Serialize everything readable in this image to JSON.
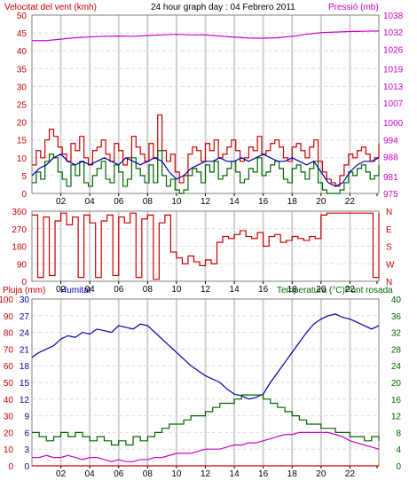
{
  "header": {
    "left_label": "Velocitat del vent (kmh)",
    "center_label": "24 hour graph day : 04 Febrero 2011",
    "right_label": "Pressió (mb)"
  },
  "colors": {
    "wind": "#cc0000",
    "gust": "#cc0000",
    "avg_wind": "#0000aa",
    "pressure": "#cc00cc",
    "dir": "#cc0000",
    "rain": "#cc0000",
    "humidity": "#0000aa",
    "temperature": "#006600",
    "dewpoint": "#cc00cc",
    "grid": "#cfcfcf",
    "frame": "#808080"
  },
  "x_ticks": [
    "02",
    "04",
    "06",
    "08",
    "10",
    "12",
    "14",
    "16",
    "18",
    "20",
    "22"
  ],
  "chart_data": [
    {
      "type": "line",
      "name": "wind-pressure",
      "xlim": [
        0,
        24
      ],
      "left_axis": {
        "label": "Velocitat del vent (kmh)",
        "ylim": [
          0,
          50
        ],
        "ticks": [
          0,
          5,
          10,
          15,
          20,
          25,
          30,
          35,
          40,
          45,
          50
        ]
      },
      "right_axis": {
        "label": "Pressió (mb)",
        "ylim": [
          975,
          1038
        ],
        "ticks": [
          975,
          981,
          988,
          994,
          1000,
          1007,
          1013,
          1019,
          1026,
          1032,
          1038
        ]
      },
      "series": [
        {
          "key": "gust",
          "axis": "left",
          "x": [
            0,
            0.3,
            0.6,
            0.9,
            1.2,
            1.5,
            1.8,
            2.1,
            2.4,
            2.7,
            3,
            3.3,
            3.6,
            3.9,
            4.2,
            4.5,
            4.8,
            5.1,
            5.4,
            5.7,
            6,
            6.3,
            6.6,
            6.9,
            7.2,
            7.5,
            7.8,
            8.1,
            8.4,
            8.7,
            9,
            9.3,
            9.6,
            9.9,
            10.2,
            10.5,
            10.8,
            11.1,
            11.4,
            11.7,
            12,
            12.3,
            12.6,
            12.9,
            13.2,
            13.5,
            13.8,
            14.1,
            14.4,
            14.7,
            15,
            15.3,
            15.6,
            15.9,
            16.2,
            16.5,
            16.8,
            17.1,
            17.4,
            17.7,
            18,
            18.3,
            18.6,
            18.9,
            19.2,
            19.5,
            19.8,
            20.1,
            20.4,
            20.7,
            21,
            21.3,
            21.6,
            21.9,
            22.2,
            22.5,
            22.8,
            23.1,
            23.4,
            23.7,
            24
          ],
          "y": [
            8,
            12,
            10,
            15,
            18,
            16,
            13,
            11,
            9,
            14,
            12,
            16,
            10,
            8,
            12,
            13,
            15,
            11,
            9,
            14,
            12,
            8,
            10,
            16,
            13,
            11,
            9,
            14,
            10,
            22,
            12,
            9,
            11,
            6,
            3,
            5,
            11,
            13,
            12,
            9,
            14,
            12,
            15,
            10,
            11,
            13,
            15,
            12,
            9,
            10,
            13,
            12,
            16,
            11,
            12,
            14,
            15,
            13,
            10,
            9,
            13,
            14,
            12,
            10,
            13,
            15,
            9,
            6,
            4,
            3,
            2,
            5,
            8,
            11,
            10,
            12,
            13,
            11,
            9,
            10,
            14
          ]
        },
        {
          "key": "wind",
          "axis": "left",
          "x": [
            0,
            0.3,
            0.6,
            0.9,
            1.2,
            1.5,
            1.8,
            2.1,
            2.4,
            2.7,
            3,
            3.3,
            3.6,
            3.9,
            4.2,
            4.5,
            4.8,
            5.1,
            5.4,
            5.7,
            6,
            6.3,
            6.6,
            6.9,
            7.2,
            7.5,
            7.8,
            8.1,
            8.4,
            8.7,
            9,
            9.3,
            9.6,
            9.9,
            10.2,
            10.5,
            10.8,
            11.1,
            11.4,
            11.7,
            12,
            12.3,
            12.6,
            12.9,
            13.2,
            13.5,
            13.8,
            14.1,
            14.4,
            14.7,
            15,
            15.3,
            15.6,
            15.9,
            16.2,
            16.5,
            16.8,
            17.1,
            17.4,
            17.7,
            18,
            18.3,
            18.6,
            18.9,
            19.2,
            19.5,
            19.8,
            20.1,
            20.4,
            20.7,
            21,
            21.3,
            21.6,
            21.9,
            22.2,
            22.5,
            22.8,
            23.1,
            23.4,
            23.7,
            24
          ],
          "y": [
            3,
            6,
            4,
            9,
            11,
            10,
            6,
            4,
            2,
            8,
            5,
            9,
            3,
            2,
            5,
            7,
            9,
            4,
            3,
            8,
            6,
            2,
            4,
            10,
            7,
            5,
            3,
            8,
            3,
            12,
            5,
            2,
            4,
            1,
            0,
            1,
            5,
            7,
            6,
            3,
            8,
            6,
            9,
            4,
            5,
            7,
            9,
            6,
            3,
            4,
            7,
            6,
            10,
            5,
            6,
            8,
            9,
            7,
            4,
            3,
            7,
            8,
            6,
            4,
            7,
            9,
            3,
            1,
            0,
            0,
            0,
            1,
            3,
            6,
            5,
            7,
            8,
            6,
            4,
            5,
            8
          ]
        },
        {
          "key": "avg_wind",
          "axis": "left",
          "x": [
            0,
            0.5,
            1,
            1.5,
            2,
            2.5,
            3,
            3.5,
            4,
            4.5,
            5,
            5.5,
            6,
            6.5,
            7,
            7.5,
            8,
            8.5,
            9,
            9.5,
            10,
            10.5,
            11,
            11.5,
            12,
            12.5,
            13,
            13.5,
            14,
            14.5,
            15,
            15.5,
            16,
            16.5,
            17,
            17.5,
            18,
            18.5,
            19,
            19.5,
            20,
            20.5,
            21,
            21.5,
            22,
            22.5,
            23,
            23.5,
            24
          ],
          "y": [
            5,
            7,
            8,
            10,
            11,
            9,
            8,
            9,
            8,
            9,
            10,
            9,
            8,
            10,
            9,
            8,
            9,
            10,
            9,
            6,
            4,
            5,
            7,
            8,
            9,
            9,
            10,
            9,
            9,
            10,
            9,
            10,
            11,
            10,
            9,
            9,
            10,
            9,
            8,
            9,
            6,
            3,
            2,
            3,
            6,
            8,
            9,
            9,
            10
          ]
        },
        {
          "key": "pressure",
          "axis": "right",
          "x": [
            0,
            1,
            2,
            3,
            4,
            5,
            6,
            7,
            8,
            9,
            10,
            11,
            12,
            13,
            14,
            15,
            16,
            17,
            18,
            19,
            20,
            21,
            22,
            23,
            24
          ],
          "y": [
            1029,
            1029,
            1029.5,
            1030,
            1030.3,
            1030.5,
            1030.6,
            1030.5,
            1030.8,
            1031,
            1031.2,
            1031,
            1031,
            1030.6,
            1030.2,
            1029.9,
            1029.8,
            1030,
            1030.5,
            1031.2,
            1031.8,
            1032,
            1032.2,
            1032.3,
            1032.4
          ]
        }
      ]
    },
    {
      "type": "scatter",
      "name": "wind-direction",
      "xlim": [
        0,
        24
      ],
      "ylim": [
        0,
        360
      ],
      "left_ticks": [
        0,
        90,
        180,
        270,
        360
      ],
      "right_ticks": [
        "N",
        "W",
        "S",
        "E",
        "N"
      ],
      "series": [
        {
          "key": "dir",
          "x": [
            0,
            0.4,
            0.8,
            1.2,
            1.6,
            2,
            2.4,
            2.8,
            3.2,
            3.6,
            4,
            4.4,
            4.8,
            5.2,
            5.6,
            6,
            6.4,
            6.8,
            7.2,
            7.6,
            8,
            8.4,
            8.8,
            9.2,
            9.6,
            10,
            10.4,
            10.8,
            11.2,
            11.6,
            12,
            12.4,
            12.8,
            13.2,
            13.6,
            14,
            14.4,
            14.8,
            15.2,
            15.6,
            16,
            16.4,
            16.8,
            17.2,
            17.6,
            18,
            18.4,
            18.8,
            19.2,
            19.6,
            20,
            20.4,
            20.8,
            21.2,
            21.6,
            22,
            22.4,
            22.8,
            23.2,
            23.6,
            24
          ],
          "y": [
            340,
            20,
            330,
            30,
            310,
            350,
            290,
            330,
            20,
            340,
            300,
            20,
            310,
            340,
            30,
            330,
            300,
            350,
            20,
            320,
            340,
            10,
            300,
            340,
            150,
            120,
            90,
            130,
            100,
            80,
            110,
            90,
            200,
            230,
            220,
            240,
            260,
            230,
            220,
            250,
            180,
            230,
            240,
            200,
            210,
            230,
            220,
            210,
            230,
            220,
            340,
            350,
            350,
            350,
            350,
            350,
            350,
            350,
            350,
            20,
            350
          ]
        }
      ]
    },
    {
      "type": "line",
      "name": "humidity-temperature",
      "xlim": [
        0,
        24
      ],
      "left_axes": [
        {
          "label": "Pluja (mm)",
          "ylim": [
            0,
            100
          ],
          "ticks": [
            0,
            10,
            20,
            30,
            40,
            50,
            60,
            70,
            80,
            90,
            100
          ]
        },
        {
          "label": "Humitat",
          "ylim": [
            0,
            30
          ],
          "ticks": [
            0,
            3,
            6,
            9,
            12,
            15,
            18,
            21,
            24,
            27,
            30
          ]
        }
      ],
      "right_axis": {
        "label": "Temperatura (°C)Punt rosada",
        "ylim": [
          0,
          40
        ],
        "ticks": [
          0,
          4,
          8,
          12,
          16,
          20,
          24,
          28,
          32,
          36,
          40
        ]
      },
      "series": [
        {
          "key": "humidity",
          "axis": "left-pct",
          "x": [
            0,
            0.5,
            1,
            1.5,
            2,
            2.5,
            3,
            3.5,
            4,
            4.5,
            5,
            5.5,
            6,
            6.5,
            7,
            7.5,
            8,
            8.5,
            9,
            9.5,
            10,
            10.5,
            11,
            11.5,
            12,
            12.5,
            13,
            13.5,
            14,
            14.5,
            15,
            15.5,
            16,
            16.5,
            17,
            17.5,
            18,
            18.5,
            19,
            19.5,
            20,
            20.5,
            21,
            21.5,
            22,
            22.5,
            23,
            23.5,
            24
          ],
          "y": [
            65,
            68,
            70,
            72,
            76,
            78,
            77,
            80,
            79,
            82,
            81,
            80,
            84,
            83,
            82,
            85,
            84,
            80,
            76,
            72,
            68,
            64,
            60,
            57,
            54,
            52,
            50,
            46,
            43,
            42,
            40,
            41,
            43,
            50,
            56,
            62,
            68,
            74,
            80,
            85,
            88,
            90,
            91,
            89,
            88,
            86,
            84,
            82,
            84
          ]
        },
        {
          "key": "temperature",
          "axis": "right",
          "x": [
            0,
            0.5,
            1,
            1.5,
            2,
            2.5,
            3,
            3.5,
            4,
            4.5,
            5,
            5.5,
            6,
            6.5,
            7,
            7.5,
            8,
            8.5,
            9,
            9.5,
            10,
            10.5,
            11,
            11.5,
            12,
            12.5,
            13,
            13.5,
            14,
            14.5,
            15,
            15.5,
            16,
            16.5,
            17,
            17.5,
            18,
            18.5,
            19,
            19.5,
            20,
            20.5,
            21,
            21.5,
            22,
            22.5,
            23,
            23.5,
            24
          ],
          "y": [
            8,
            7,
            6,
            7,
            8,
            7,
            8,
            7,
            6,
            7,
            6,
            5,
            6,
            5,
            7,
            6,
            7,
            8,
            9,
            10,
            10,
            11,
            12,
            12,
            13,
            14,
            15,
            15,
            16,
            17,
            17,
            17,
            16,
            15,
            14,
            13,
            12,
            11,
            10,
            10,
            9,
            9,
            8,
            8,
            7,
            7,
            6,
            7,
            6
          ]
        },
        {
          "key": "dewpoint",
          "axis": "right",
          "x": [
            0,
            0.5,
            1,
            1.5,
            2,
            2.5,
            3,
            3.5,
            4,
            4.5,
            5,
            5.5,
            6,
            6.5,
            7,
            7.5,
            8,
            8.5,
            9,
            9.5,
            10,
            10.5,
            11,
            11.5,
            12,
            12.5,
            13,
            13.5,
            14,
            14.5,
            15,
            15.5,
            16,
            16.5,
            17,
            17.5,
            18,
            18.5,
            19,
            19.5,
            20,
            20.5,
            21,
            21.5,
            22,
            22.5,
            23,
            23.5,
            24
          ],
          "y": [
            2,
            2,
            2.5,
            2,
            2,
            2.5,
            2,
            1.5,
            2,
            2,
            1.5,
            1,
            1.5,
            1,
            1,
            1.5,
            1.5,
            2,
            2,
            2.5,
            3,
            3,
            3,
            3.5,
            4,
            4,
            4,
            4.5,
            5,
            5,
            5.5,
            5.5,
            6,
            6.5,
            7,
            7.5,
            7.5,
            8,
            8,
            8,
            8,
            8,
            7.5,
            7,
            6,
            5.5,
            5,
            4.5,
            4
          ]
        },
        {
          "key": "rain",
          "axis": "left",
          "x": [
            0,
            24
          ],
          "y": [
            0,
            0
          ]
        }
      ]
    }
  ],
  "labels": {
    "dir_right": [
      "N",
      "W",
      "S",
      "E",
      "N"
    ],
    "bottom_left_rain": "Pluja (mm)",
    "bottom_left_hum": "Humitat",
    "bottom_right": "Temperatura (°C)Punt rosada"
  }
}
